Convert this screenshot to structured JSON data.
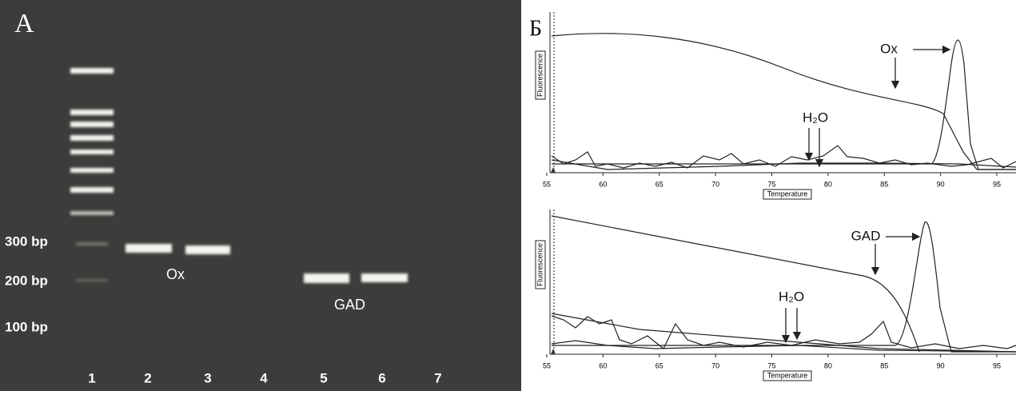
{
  "panel_a": {
    "label": "A",
    "size_markers": [
      "300 bp",
      "200 bp",
      "100 bp"
    ],
    "lanes": [
      "1",
      "2",
      "3",
      "4",
      "5",
      "6",
      "7"
    ],
    "band_labels": [
      "Ox",
      "GAD"
    ]
  },
  "panel_b": {
    "label": "Б",
    "plots": [
      {
        "x_axis_label": "Temperature",
        "y_axis_label": "Fluorescence",
        "xticks": [
          55,
          60,
          65,
          70,
          75,
          80,
          85,
          90,
          95
        ],
        "annotations": [
          "Ox",
          "H₂O"
        ]
      },
      {
        "x_axis_label": "Temperature",
        "y_axis_label": "Fluorescence",
        "xticks": [
          55,
          60,
          65,
          70,
          75,
          80,
          85,
          90,
          95
        ],
        "annotations": [
          "GAD",
          "H₂O"
        ]
      }
    ]
  }
}
